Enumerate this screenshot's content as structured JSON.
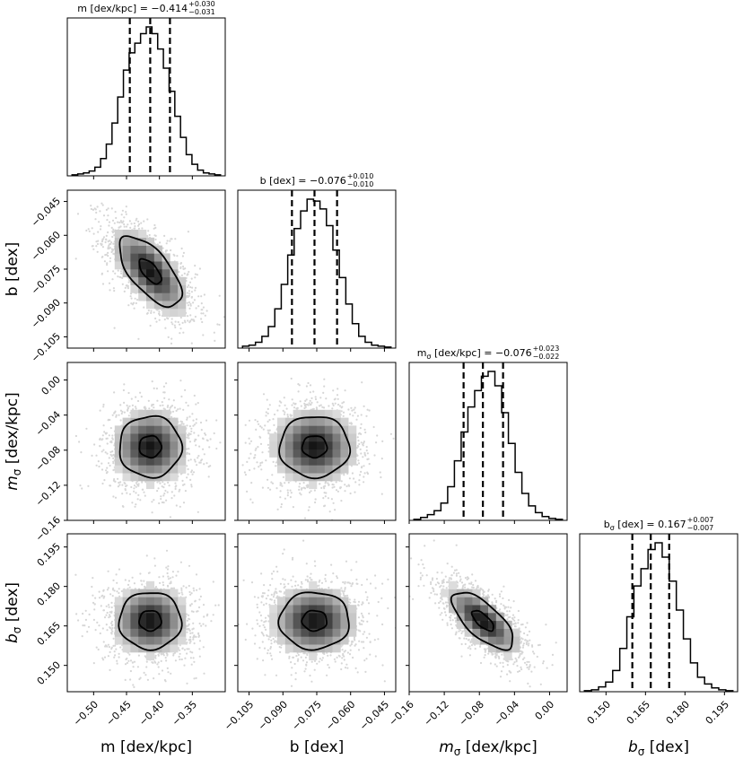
{
  "chart_data": {
    "type": "corner",
    "params": [
      {
        "key": "m",
        "label": "m [dex/kpc]",
        "range": [
          -0.54,
          -0.3
        ],
        "ticks": [
          -0.5,
          -0.45,
          -0.4,
          -0.35
        ],
        "tick_labels": [
          "−0.50",
          "−0.45",
          "−0.40",
          "−0.35"
        ],
        "median": -0.414,
        "q16": -0.445,
        "q84": -0.384,
        "title_main": "m [dex/kpc] = −0.414",
        "title_plus": "+0.030",
        "title_minus": "−0.031",
        "hist": [
          1,
          2,
          3,
          5,
          9,
          18,
          33,
          55,
          82,
          110,
          128,
          138,
          148,
          155,
          148,
          132,
          112,
          88,
          62,
          40,
          22,
          12,
          6,
          3,
          2,
          1
        ]
      },
      {
        "key": "b",
        "label": "b [dex]",
        "range": [
          -0.11,
          -0.04
        ],
        "ticks": [
          -0.105,
          -0.09,
          -0.075,
          -0.06,
          -0.045
        ],
        "tick_labels": [
          "−0.105",
          "−0.090",
          "−0.075",
          "−0.060",
          "−0.045"
        ],
        "median": -0.076,
        "q16": -0.086,
        "q84": -0.066,
        "title_main": "b [dex] = −0.076",
        "title_plus": "+0.010",
        "title_minus": "−0.010",
        "hist": [
          2,
          3,
          6,
          12,
          22,
          40,
          65,
          95,
          122,
          140,
          152,
          150,
          142,
          125,
          100,
          72,
          45,
          25,
          12,
          6,
          3,
          2,
          1
        ]
      },
      {
        "key": "m_sigma",
        "label": "mσ [dex/kpc]",
        "label_base": "m",
        "label_sub": "σ",
        "label_unit": " [dex/kpc]",
        "range": [
          -0.16,
          0.02
        ],
        "ticks": [
          -0.16,
          -0.12,
          -0.08,
          -0.04,
          0.0
        ],
        "tick_labels": [
          "−0.16",
          "−0.12",
          "−0.08",
          "−0.04",
          "0.00"
        ],
        "median": -0.076,
        "q16": -0.098,
        "q84": -0.053,
        "title_main": " [dex/kpc] = −0.076",
        "title_base": "m",
        "title_sub": "σ",
        "title_plus": "+0.023",
        "title_minus": "−0.022",
        "hist": [
          1,
          3,
          6,
          10,
          18,
          35,
          62,
          92,
          118,
          135,
          150,
          155,
          140,
          112,
          80,
          50,
          28,
          15,
          8,
          4,
          2,
          1
        ]
      },
      {
        "key": "b_sigma",
        "label": "bσ [dex]",
        "label_base": "b",
        "label_sub": "σ",
        "label_unit": " [dex]",
        "range": [
          0.14,
          0.2
        ],
        "ticks": [
          0.15,
          0.165,
          0.18,
          0.195
        ],
        "tick_labels": [
          "0.150",
          "0.165",
          "0.180",
          "0.195"
        ],
        "median": 0.167,
        "q16": 0.16,
        "q84": 0.174,
        "title_main": " [dex] = 0.167",
        "title_base": "b",
        "title_sub": "σ",
        "title_plus": "+0.007",
        "title_minus": "−0.007",
        "hist": [
          1,
          2,
          5,
          10,
          22,
          45,
          78,
          110,
          128,
          148,
          155,
          140,
          115,
          85,
          55,
          30,
          15,
          8,
          4,
          2,
          1
        ]
      }
    ],
    "correlations": {
      "1-0": -0.65,
      "2-0": 0.0,
      "2-1": 0.0,
      "3-0": 0.0,
      "3-1": 0.0,
      "3-2": -0.7
    }
  }
}
